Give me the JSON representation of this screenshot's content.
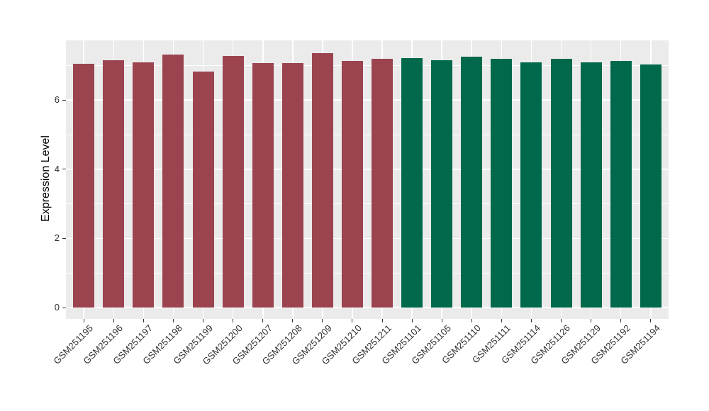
{
  "chart_data": {
    "type": "bar",
    "title": "",
    "xlabel": "",
    "ylabel": "Expression Level",
    "ylim": [
      0,
      7.72
    ],
    "y_ticks": [
      0,
      2,
      4,
      6
    ],
    "y_tick_labels": [
      "0",
      "2",
      "4",
      "6"
    ],
    "y_minor_ticks": [
      1,
      3,
      5,
      7
    ],
    "grid": "white major and minor gridlines on gray panel",
    "legend_position": "none",
    "categories": [
      "GSM251195",
      "GSM251196",
      "GSM251197",
      "GSM251198",
      "GSM251199",
      "GSM251200",
      "GSM251207",
      "GSM251208",
      "GSM251209",
      "GSM251210",
      "GSM251211",
      "GSM251101",
      "GSM251105",
      "GSM251110",
      "GSM251111",
      "GSM251114",
      "GSM251126",
      "GSM251129",
      "GSM251192",
      "GSM251194"
    ],
    "values": [
      7.05,
      7.16,
      7.09,
      7.31,
      6.82,
      7.27,
      7.07,
      7.06,
      7.35,
      7.14,
      7.19,
      7.22,
      7.15,
      7.25,
      7.19,
      7.1,
      7.19,
      7.1,
      7.14,
      7.03
    ],
    "series": [
      {
        "name": "group-red",
        "color": "#9B4450",
        "categories": [
          "GSM251195",
          "GSM251196",
          "GSM251197",
          "GSM251198",
          "GSM251199",
          "GSM251200",
          "GSM251207",
          "GSM251208",
          "GSM251209",
          "GSM251210",
          "GSM251211"
        ],
        "values": [
          7.05,
          7.16,
          7.09,
          7.31,
          6.82,
          7.27,
          7.07,
          7.06,
          7.35,
          7.14,
          7.19
        ]
      },
      {
        "name": "group-green",
        "color": "#00694B",
        "categories": [
          "GSM251101",
          "GSM251105",
          "GSM251110",
          "GSM251111",
          "GSM251114",
          "GSM251126",
          "GSM251129",
          "GSM251192",
          "GSM251194"
        ],
        "values": [
          7.22,
          7.15,
          7.25,
          7.19,
          7.1,
          7.19,
          7.1,
          7.14,
          7.03
        ]
      }
    ],
    "groups": [
      {
        "name": "group-red",
        "color": "#9B4450",
        "start": 0,
        "count": 11
      },
      {
        "name": "group-green",
        "color": "#00694B",
        "start": 11,
        "count": 9
      }
    ]
  },
  "colors": {
    "panel_background": "#EBEBEB",
    "gridline": "#FFFFFF",
    "bar_red": "#9B4450",
    "bar_green": "#00694B",
    "axis_text": "#303030",
    "tick_mark": "#333333",
    "page_background": "#FFFFFF"
  }
}
